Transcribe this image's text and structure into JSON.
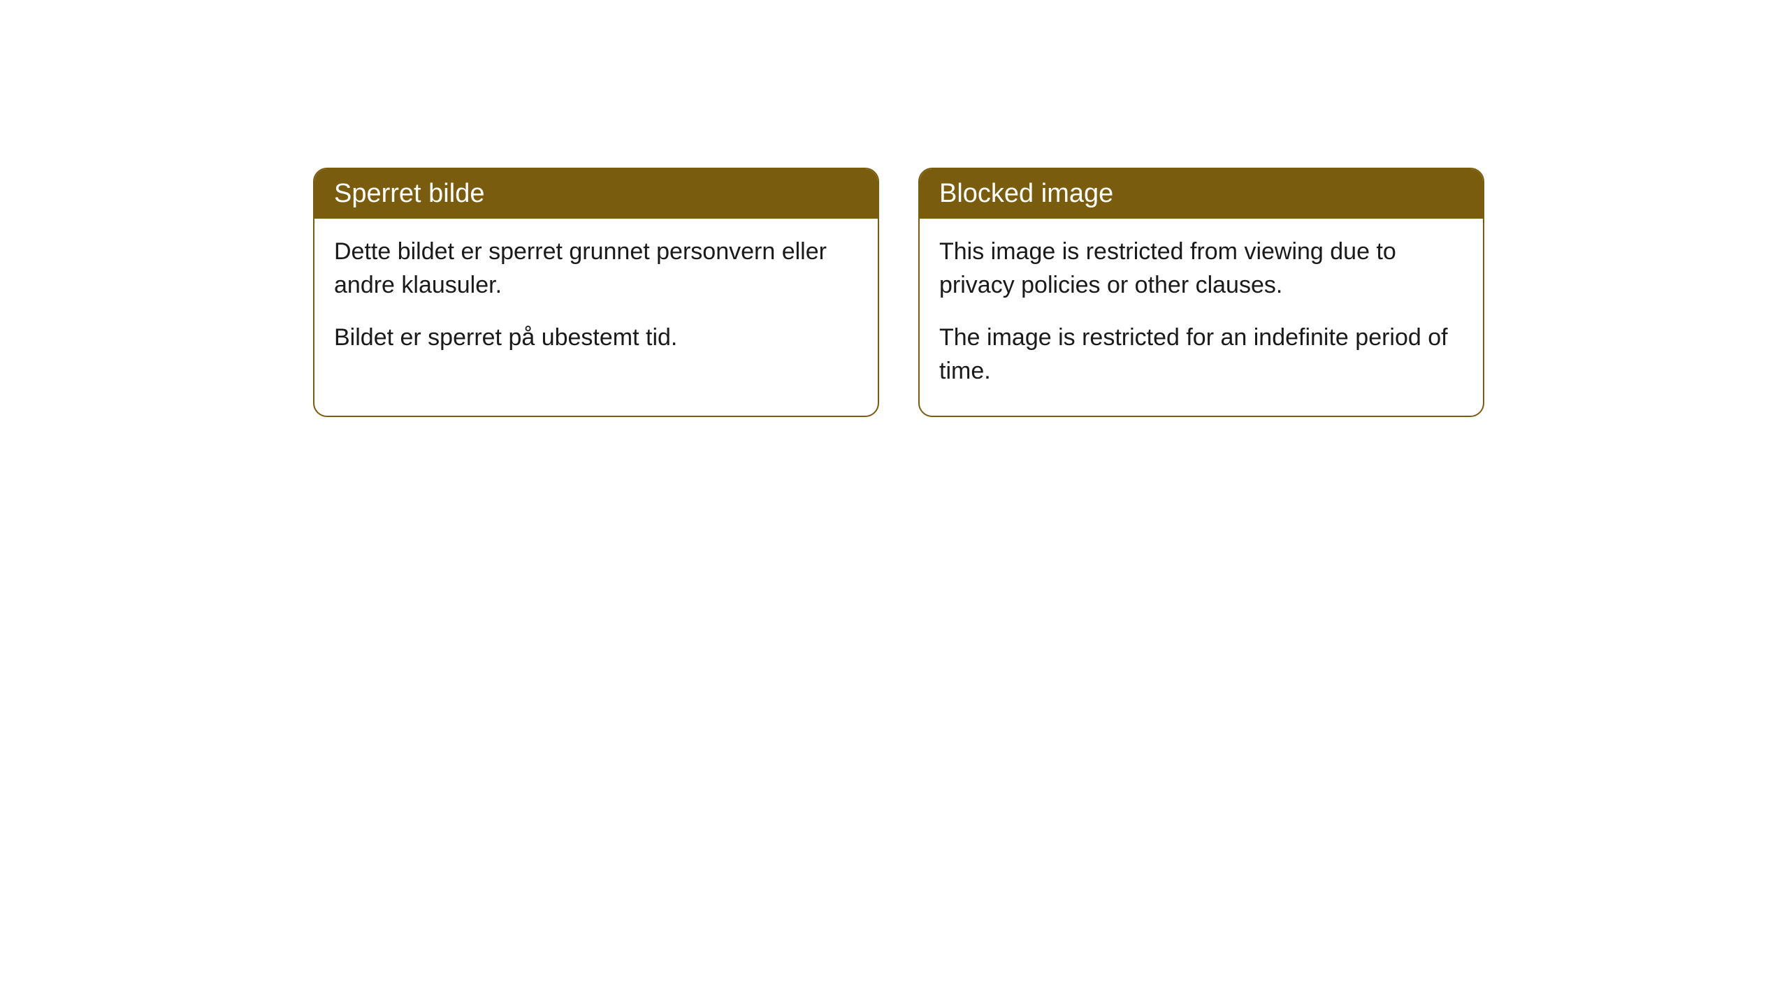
{
  "cards": [
    {
      "title": "Sperret bilde",
      "paragraph1": "Dette bildet er sperret grunnet personvern eller andre klausuler.",
      "paragraph2": "Bildet er sperret på ubestemt tid."
    },
    {
      "title": "Blocked image",
      "paragraph1": "This image is restricted from viewing due to privacy policies or other clauses.",
      "paragraph2": "The image is restricted for an indefinite period of time."
    }
  ],
  "styling": {
    "header_background_color": "#7a5c0e",
    "header_text_color": "#ffffff",
    "border_color": "#7a5c0e",
    "body_background_color": "#ffffff",
    "body_text_color": "#1a1a1a",
    "border_radius": 20,
    "title_fontsize": 38,
    "body_fontsize": 34
  }
}
